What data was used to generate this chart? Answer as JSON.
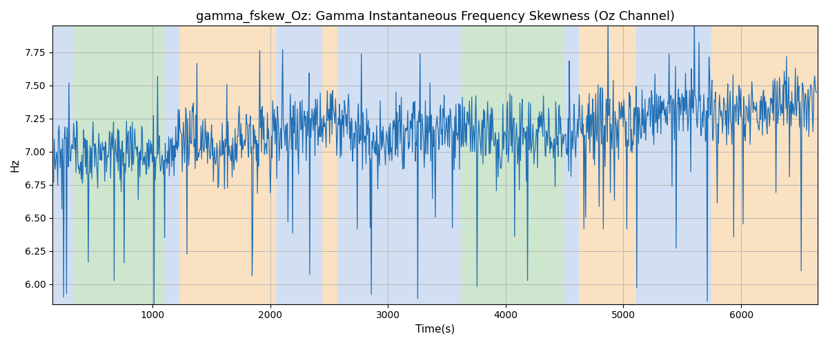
{
  "title": "gamma_fskew_Oz: Gamma Instantaneous Frequency Skewness (Oz Channel)",
  "xlabel": "Time(s)",
  "ylabel": "Hz",
  "xlim": [
    150,
    6650
  ],
  "ylim": [
    5.85,
    7.95
  ],
  "yticks": [
    6.0,
    6.25,
    6.5,
    6.75,
    7.0,
    7.25,
    7.5,
    7.75
  ],
  "xticks": [
    1000,
    2000,
    3000,
    4000,
    5000,
    6000
  ],
  "line_color": "#1f6eb5",
  "line_width": 0.9,
  "bg_color": "white",
  "grid_color": "#b0b0b0",
  "title_fontsize": 13,
  "label_fontsize": 11,
  "bands": [
    {
      "xmin": 150,
      "xmax": 330,
      "color": "#aec6e8",
      "alpha": 0.55
    },
    {
      "xmin": 330,
      "xmax": 1100,
      "color": "#90c990",
      "alpha": 0.45
    },
    {
      "xmin": 1100,
      "xmax": 1230,
      "color": "#aec6e8",
      "alpha": 0.55
    },
    {
      "xmin": 1230,
      "xmax": 2050,
      "color": "#f5c990",
      "alpha": 0.55
    },
    {
      "xmin": 2050,
      "xmax": 2440,
      "color": "#aec6e8",
      "alpha": 0.55
    },
    {
      "xmin": 2440,
      "xmax": 2570,
      "color": "#f5c990",
      "alpha": 0.55
    },
    {
      "xmin": 2570,
      "xmax": 3620,
      "color": "#aec6e8",
      "alpha": 0.55
    },
    {
      "xmin": 3620,
      "xmax": 3730,
      "color": "#90c990",
      "alpha": 0.45
    },
    {
      "xmin": 3730,
      "xmax": 4490,
      "color": "#90c990",
      "alpha": 0.45
    },
    {
      "xmin": 4490,
      "xmax": 4620,
      "color": "#aec6e8",
      "alpha": 0.55
    },
    {
      "xmin": 4620,
      "xmax": 5110,
      "color": "#f5c990",
      "alpha": 0.55
    },
    {
      "xmin": 5110,
      "xmax": 5750,
      "color": "#aec6e8",
      "alpha": 0.55
    },
    {
      "xmin": 5750,
      "xmax": 6650,
      "color": "#f5c990",
      "alpha": 0.55
    }
  ],
  "seed": 42,
  "n_points": 1300,
  "t_start": 160,
  "t_end": 6640,
  "signal_mean": 7.15,
  "noise_std": 0.13,
  "spike_down_count": 55,
  "spike_up_count": 25
}
